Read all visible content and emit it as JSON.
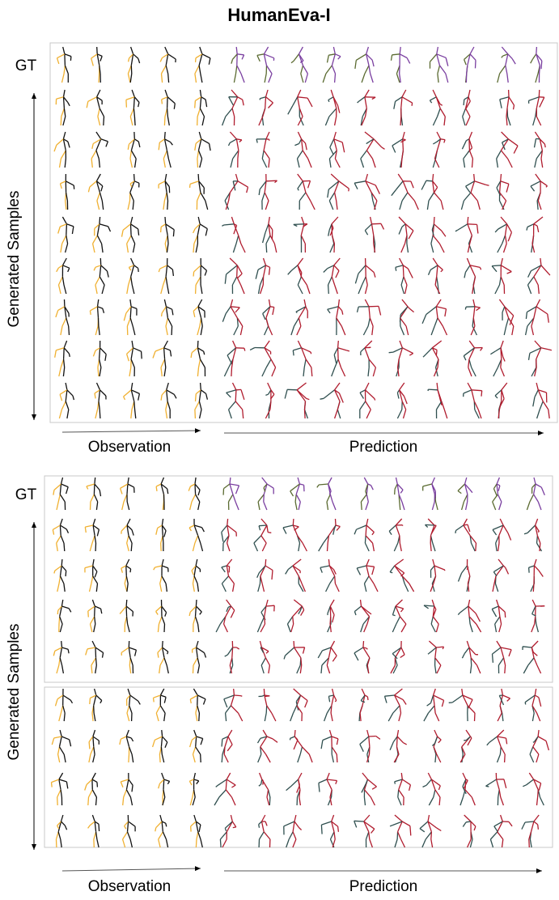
{
  "title": "HumanEva-I",
  "panels": [
    {
      "gt_label": "GT",
      "samples_label": "Generated Samples",
      "observation_label": "Observation",
      "prediction_label": "Prediction"
    },
    {
      "gt_label": "GT",
      "samples_label": "Generated Samples",
      "observation_label": "Observation",
      "prediction_label": "Prediction"
    }
  ]
}
